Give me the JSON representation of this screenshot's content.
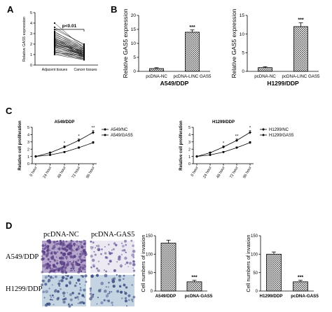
{
  "figure": {
    "panel_labels": [
      "A",
      "B",
      "C",
      "D"
    ],
    "colors": {
      "black": "#000000",
      "hatch": "#555555",
      "ic_nc_bg": "#b6a7cc",
      "ic_nc_dot": "#5a3f86",
      "ic_gas5_bg": "#ece9f2",
      "ic_gas5_dot": "#6d5a9b",
      "ic_blue_bg": "#c4d4e3",
      "ic_blue_dot": "#3e4f83"
    },
    "panel_d_images": {
      "column_headers": [
        "pcDNA-NC",
        "pcDNA-GAS5"
      ],
      "row_labels": [
        "A549/DDP",
        "H1299/DDP"
      ]
    }
  },
  "chart_data": [
    {
      "id": "A",
      "type": "scatter",
      "subtype": "paired-lines",
      "categories": [
        "Adjacent tissues",
        "Cancer tissues"
      ],
      "ylabel": "Relative GAS5 expression",
      "ylim": [
        0,
        5
      ],
      "yticks": [
        "0",
        "1",
        "2",
        "3",
        "4",
        "5"
      ],
      "annotation": "p<0.01",
      "pairs": [
        [
          4.0,
          1.6
        ],
        [
          3.6,
          1.9
        ],
        [
          3.4,
          2.0
        ],
        [
          3.2,
          1.5
        ],
        [
          3.1,
          1.8
        ],
        [
          3.0,
          1.4
        ],
        [
          2.9,
          1.7
        ],
        [
          2.8,
          1.3
        ],
        [
          2.7,
          1.6
        ],
        [
          2.6,
          1.2
        ],
        [
          2.55,
          1.5
        ],
        [
          2.5,
          1.1
        ],
        [
          2.45,
          1.4
        ],
        [
          2.4,
          1.0
        ],
        [
          2.35,
          1.3
        ],
        [
          2.3,
          1.2
        ],
        [
          2.25,
          0.9
        ],
        [
          2.2,
          1.1
        ],
        [
          2.15,
          1.0
        ],
        [
          2.1,
          1.3
        ],
        [
          2.05,
          0.8
        ],
        [
          2.0,
          1.2
        ],
        [
          1.95,
          0.9
        ],
        [
          1.9,
          1.0
        ],
        [
          1.85,
          1.1
        ],
        [
          1.8,
          0.7
        ],
        [
          1.75,
          0.9
        ],
        [
          1.7,
          1.0
        ],
        [
          1.6,
          0.8
        ],
        [
          1.5,
          0.6
        ],
        [
          1.4,
          0.8
        ],
        [
          1.3,
          0.5
        ],
        [
          1.25,
          0.7
        ],
        [
          1.2,
          0.9
        ],
        [
          1.1,
          0.6
        ],
        [
          1.0,
          0.5
        ]
      ]
    },
    {
      "id": "B1",
      "type": "bar",
      "title": "A549/DDP",
      "categories": [
        "pcDNA-NC",
        "pcDNA-LINC GAS5"
      ],
      "values": [
        1.0,
        14.0
      ],
      "errors": [
        0.3,
        0.8
      ],
      "ylabel": "Relative GAS5 expression",
      "ylim": [
        0,
        20
      ],
      "yticks": [
        "0",
        "5",
        "10",
        "15",
        "20"
      ],
      "significance": [
        "",
        "***"
      ]
    },
    {
      "id": "B2",
      "type": "bar",
      "title": "H1299/DDP",
      "categories": [
        "pcDNA-NC",
        "pcDNA-LINC GAS5"
      ],
      "values": [
        1.0,
        12.0
      ],
      "errors": [
        0.25,
        1.0
      ],
      "ylabel": "Relative GAS5 expression",
      "ylim": [
        0,
        15
      ],
      "yticks": [
        "0",
        "5",
        "10",
        "15"
      ],
      "significance": [
        "",
        "***"
      ]
    },
    {
      "id": "C1",
      "type": "line",
      "title": "A549/DDP",
      "x": [
        "0 hour",
        "24 hour",
        "48 hour",
        "72 hour",
        "96 hour"
      ],
      "series": [
        {
          "name": "A549/NC",
          "values": [
            1.0,
            1.5,
            2.3,
            3.2,
            4.3
          ],
          "errors": [
            0.05,
            0.1,
            0.15,
            0.2,
            0.25
          ]
        },
        {
          "name": "A549/GAS5",
          "values": [
            1.0,
            1.2,
            1.6,
            2.2,
            2.9
          ],
          "errors": [
            0.05,
            0.08,
            0.1,
            0.12,
            0.15
          ]
        }
      ],
      "significance": [
        "",
        "",
        "*",
        "*",
        "**"
      ],
      "ylabel": "Relative cell proliferation",
      "ylim": [
        0,
        5
      ],
      "yticks": [
        "0",
        "1",
        "2",
        "3",
        "4",
        "5"
      ],
      "legend": "top-right"
    },
    {
      "id": "C2",
      "type": "line",
      "title": "H1299/DDP",
      "x": [
        "0 hour",
        "24 hour",
        "48 hour",
        "72 hour",
        "96 hour"
      ],
      "series": [
        {
          "name": "H1299/NC",
          "values": [
            1.0,
            1.5,
            2.3,
            3.2,
            4.3
          ],
          "errors": [
            0.05,
            0.1,
            0.15,
            0.2,
            0.25
          ]
        },
        {
          "name": "H1299/GAS5",
          "values": [
            1.0,
            1.2,
            1.6,
            2.2,
            2.9
          ],
          "errors": [
            0.05,
            0.08,
            0.1,
            0.12,
            0.15
          ]
        }
      ],
      "significance": [
        "",
        "",
        "*",
        "**",
        "*"
      ],
      "ylabel": "Relative cell proliferation",
      "ylim": [
        0,
        5
      ],
      "yticks": [
        "0",
        "1",
        "2",
        "3",
        "4",
        "5"
      ],
      "legend": "top-right"
    },
    {
      "id": "D1",
      "type": "bar",
      "categories": [
        "A549/DDP",
        "pcDNA-GAS5"
      ],
      "values": [
        130,
        25
      ],
      "errors": [
        8,
        4
      ],
      "ylabel": "Cell numbers of invasion",
      "ylim": [
        0,
        150
      ],
      "yticks": [
        "0",
        "50",
        "100",
        "150"
      ],
      "significance": [
        "",
        "***"
      ]
    },
    {
      "id": "D2",
      "type": "bar",
      "categories": [
        "H1299/DDP",
        "pcDNA-GAS5"
      ],
      "values": [
        100,
        25
      ],
      "errors": [
        6,
        4
      ],
      "ylabel": "Cell numbers of invasion",
      "ylim": [
        0,
        150
      ],
      "yticks": [
        "0",
        "50",
        "100",
        "150"
      ],
      "significance": [
        "",
        "***"
      ]
    }
  ]
}
